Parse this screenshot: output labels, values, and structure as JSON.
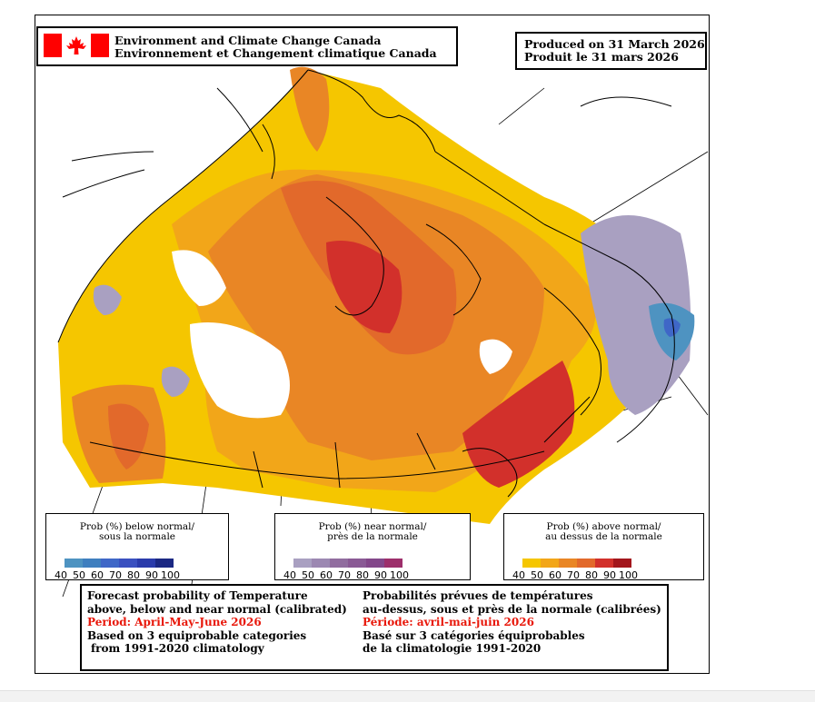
{
  "header": {
    "agency_en": "Environment and Climate Change Canada",
    "agency_fr": "Environnement et Changement climatique Canada",
    "produced_en": "Produced on 31 March 2026",
    "produced_fr": "Produit le 31 mars 2026"
  },
  "legends": {
    "below": {
      "line1": "Prob (%) below normal/",
      "line2": "sous la normale",
      "colors": [
        "#4e93c1",
        "#3f7fbf",
        "#3f67c7",
        "#3a50c0",
        "#2a3bab",
        "#1b2883"
      ],
      "ticks": [
        "40",
        "50",
        "60",
        "70",
        "80",
        "90",
        "100"
      ]
    },
    "near": {
      "line1": "Prob (%) near normal/",
      "line2": "près de la normale",
      "colors": [
        "#a9a0c1",
        "#9c88b2",
        "#916d9f",
        "#8a5a95",
        "#83478a",
        "#9d2f6b"
      ],
      "ticks": [
        "40",
        "50",
        "60",
        "70",
        "80",
        "90",
        "100"
      ]
    },
    "above": {
      "line1": "Prob (%) above normal/",
      "line2": "au dessus de la normale",
      "colors": [
        "#f5c600",
        "#f2a619",
        "#e98625",
        "#e2692b",
        "#d2302b",
        "#a3161c"
      ],
      "ticks": [
        "40",
        "50",
        "60",
        "70",
        "80",
        "90",
        "100"
      ]
    }
  },
  "info": {
    "en_l1": "Forecast probability of Temperature",
    "en_l2": "above, below and near normal (calibrated)",
    "en_period": "Period: April-May-June 2026",
    "en_l4": "Based on 3 equiprobable categories",
    "en_l5": "from 1991-2020 climatology",
    "fr_l1": "Probabilités prévues de températures",
    "fr_l2": "au-dessus, sous et près de la normale (calibrées)",
    "fr_period": "Période: avril-mai-juin 2026",
    "fr_l4": "Basé sur 3 catégories équiprobables",
    "fr_l5": "de la climatologie 1991-2020"
  },
  "colors": {
    "accent_red": "#e8170a",
    "flag_red": "#ff0000"
  }
}
